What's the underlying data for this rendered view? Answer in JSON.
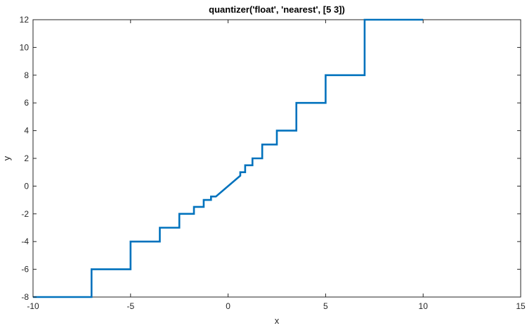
{
  "chart_data": {
    "type": "line",
    "title": "quantizer('float', 'nearest', [5  3])",
    "xlabel": "x",
    "ylabel": "y",
    "xlim": [
      -10,
      15
    ],
    "ylim": [
      -8,
      12
    ],
    "xticks": [
      "-10",
      "-5",
      "0",
      "5",
      "10",
      "15"
    ],
    "yticks": [
      "-8",
      "-6",
      "-4",
      "-2",
      "0",
      "2",
      "4",
      "6",
      "8",
      "10",
      "12"
    ],
    "grid": false,
    "series": [
      {
        "color": "#0072BD",
        "step_thresholds": [
          -7,
          -5,
          -3.5,
          -2.5,
          -1.75,
          -1.25,
          -0.875,
          -0.625,
          0.625,
          0.875,
          1.25,
          1.75,
          2.5,
          3.5,
          5,
          7,
          10
        ],
        "levels": [
          -8,
          -6,
          -4,
          -3,
          -2,
          -1.5,
          -1,
          -0.75,
          0.75,
          1,
          1.5,
          2,
          3,
          4,
          6,
          8,
          12
        ],
        "x_range": [
          -10,
          12
        ]
      }
    ]
  }
}
